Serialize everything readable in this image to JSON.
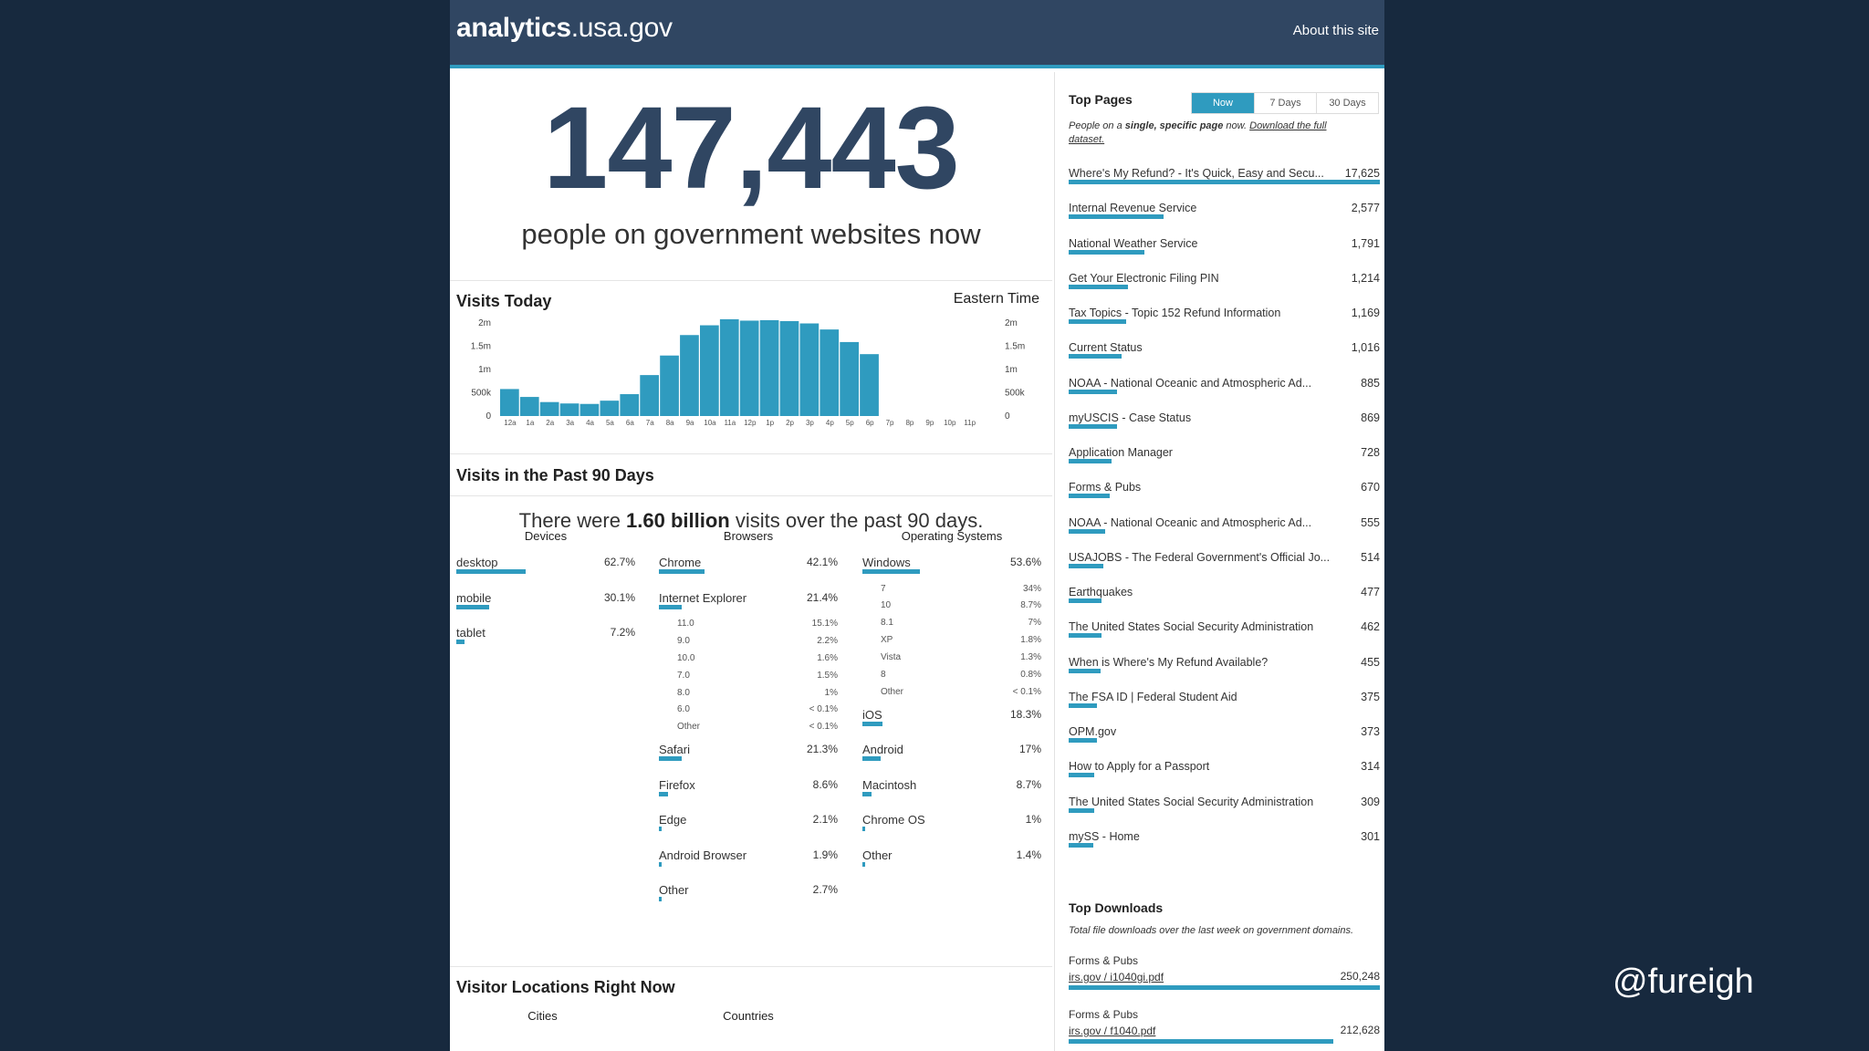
{
  "site": {
    "brand_bold": "analytics",
    "brand_light": ".usa.gov",
    "about_label": "About this site"
  },
  "hero": {
    "count": "147,443",
    "caption": "people on government websites now"
  },
  "visits_today": {
    "title": "Visits Today",
    "timezone": "Eastern Time",
    "chart_data": {
      "type": "bar",
      "title": "Visits Today",
      "categories": [
        "12a",
        "1a",
        "2a",
        "3a",
        "4a",
        "5a",
        "6a",
        "7a",
        "8a",
        "9a",
        "10a",
        "11a",
        "12p",
        "1p",
        "2p",
        "3p",
        "4p",
        "5p",
        "6p",
        "7p",
        "8p",
        "9p",
        "10p",
        "11p"
      ],
      "values": [
        580000,
        410000,
        300000,
        270000,
        260000,
        330000,
        470000,
        880000,
        1300000,
        1740000,
        1950000,
        2080000,
        2050000,
        2060000,
        2040000,
        1990000,
        1860000,
        1590000,
        1330000,
        null,
        null,
        null,
        null,
        null
      ],
      "y_ticks": [
        "0",
        "500k",
        "1m",
        "1.5m",
        "2m"
      ],
      "ylim": [
        0,
        2000000
      ]
    }
  },
  "past_90": {
    "title": "Visits in the Past 90 Days",
    "summary_pre": "There were ",
    "summary_bold": "1.60 billion",
    "summary_post": " visits over the past 90 days.",
    "devices": {
      "heading": "Devices",
      "items": [
        {
          "label": "desktop",
          "value": "62.7%",
          "pct": 62.7
        },
        {
          "label": "mobile",
          "value": "30.1%",
          "pct": 30.1
        },
        {
          "label": "tablet",
          "value": "7.2%",
          "pct": 7.2
        }
      ]
    },
    "browsers": {
      "heading": "Browsers",
      "items": [
        {
          "label": "Chrome",
          "value": "42.1%",
          "pct": 42.1
        },
        {
          "label": "Internet Explorer",
          "value": "21.4%",
          "pct": 21.4,
          "sub": [
            {
              "label": "11.0",
              "value": "15.1%"
            },
            {
              "label": "9.0",
              "value": "2.2%"
            },
            {
              "label": "10.0",
              "value": "1.6%"
            },
            {
              "label": "7.0",
              "value": "1.5%"
            },
            {
              "label": "8.0",
              "value": "1%"
            },
            {
              "label": "6.0",
              "value": "< 0.1%"
            },
            {
              "label": "Other",
              "value": "< 0.1%"
            }
          ]
        },
        {
          "label": "Safari",
          "value": "21.3%",
          "pct": 21.3
        },
        {
          "label": "Firefox",
          "value": "8.6%",
          "pct": 8.6
        },
        {
          "label": "Edge",
          "value": "2.1%",
          "pct": 2.1
        },
        {
          "label": "Android Browser",
          "value": "1.9%",
          "pct": 1.9
        },
        {
          "label": "Other",
          "value": "2.7%",
          "pct": 2.7
        }
      ]
    },
    "os": {
      "heading": "Operating Systems",
      "items": [
        {
          "label": "Windows",
          "value": "53.6%",
          "pct": 53.6,
          "sub": [
            {
              "label": "7",
              "value": "34%"
            },
            {
              "label": "10",
              "value": "8.7%"
            },
            {
              "label": "8.1",
              "value": "7%"
            },
            {
              "label": "XP",
              "value": "1.8%"
            },
            {
              "label": "Vista",
              "value": "1.3%"
            },
            {
              "label": "8",
              "value": "0.8%"
            },
            {
              "label": "Other",
              "value": "< 0.1%"
            }
          ]
        },
        {
          "label": "iOS",
          "value": "18.3%",
          "pct": 18.3
        },
        {
          "label": "Android",
          "value": "17%",
          "pct": 17
        },
        {
          "label": "Macintosh",
          "value": "8.7%",
          "pct": 8.7
        },
        {
          "label": "Chrome OS",
          "value": "1%",
          "pct": 1
        },
        {
          "label": "Other",
          "value": "1.4%",
          "pct": 1.4
        }
      ]
    }
  },
  "locations": {
    "title": "Visitor Locations Right Now",
    "cities_heading": "Cities",
    "countries_heading": "Countries"
  },
  "top_pages": {
    "title": "Top Pages",
    "tabs": [
      "Now",
      "7 Days",
      "30 Days"
    ],
    "desc_pre": "People on a ",
    "desc_bold": "single, specific page",
    "desc_mid": " now. ",
    "desc_link": "Download the full dataset.",
    "items": [
      {
        "label": "Where's My Refund? - It's Quick, Easy and Secu...",
        "value": "17,625",
        "n": 17625
      },
      {
        "label": "Internal Revenue Service",
        "value": "2,577",
        "n": 2577
      },
      {
        "label": "National Weather Service",
        "value": "1,791",
        "n": 1791
      },
      {
        "label": "Get Your Electronic Filing PIN",
        "value": "1,214",
        "n": 1214
      },
      {
        "label": "Tax Topics - Topic 152 Refund Information",
        "value": "1,169",
        "n": 1169
      },
      {
        "label": "Current Status",
        "value": "1,016",
        "n": 1016
      },
      {
        "label": "NOAA - National Oceanic and Atmospheric Ad...",
        "value": "885",
        "n": 885
      },
      {
        "label": "myUSCIS - Case Status",
        "value": "869",
        "n": 869
      },
      {
        "label": "Application Manager",
        "value": "728",
        "n": 728
      },
      {
        "label": "Forms & Pubs",
        "value": "670",
        "n": 670
      },
      {
        "label": "NOAA - National Oceanic and Atmospheric Ad...",
        "value": "555",
        "n": 555
      },
      {
        "label": "USAJOBS - The Federal Government's Official Jo...",
        "value": "514",
        "n": 514
      },
      {
        "label": "Earthquakes",
        "value": "477",
        "n": 477
      },
      {
        "label": "The United States Social Security Administration",
        "value": "462",
        "n": 462
      },
      {
        "label": "When is Where's My Refund Available?",
        "value": "455",
        "n": 455
      },
      {
        "label": "The FSA ID | Federal Student Aid",
        "value": "375",
        "n": 375
      },
      {
        "label": "OPM.gov",
        "value": "373",
        "n": 373
      },
      {
        "label": "How to Apply for a Passport",
        "value": "314",
        "n": 314
      },
      {
        "label": "The United States Social Security Administration",
        "value": "309",
        "n": 309
      },
      {
        "label": "mySS - Home",
        "value": "301",
        "n": 301
      }
    ]
  },
  "top_downloads": {
    "title": "Top Downloads",
    "desc": "Total file downloads over the last week on government domains.",
    "items": [
      {
        "category": "Forms & Pubs",
        "file": "irs.gov / i1040gi.pdf",
        "value": "250,248",
        "n": 250248
      },
      {
        "category": "Forms & Pubs",
        "file": "irs.gov / f1040.pdf",
        "value": "212,628",
        "n": 212628
      }
    ]
  },
  "watermark": "@fureigh",
  "colors": {
    "bar": "#2f9bbf",
    "header": "#304662",
    "page_bg": "#17293e"
  }
}
